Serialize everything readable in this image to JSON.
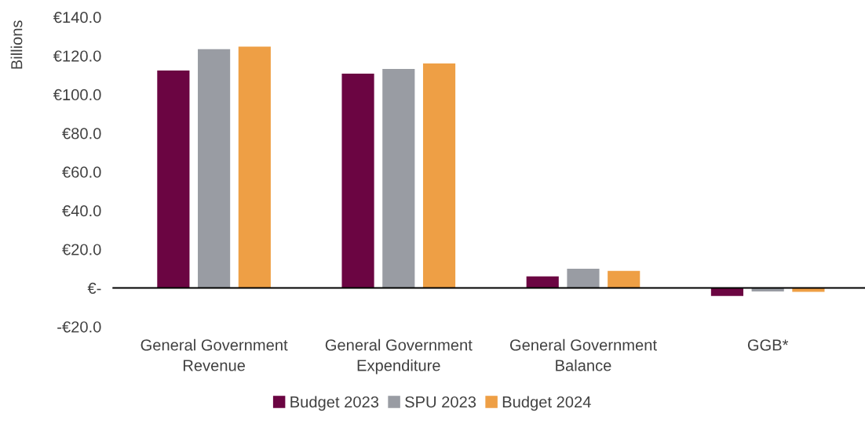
{
  "chart_data": {
    "type": "bar",
    "ylabel": "Billions",
    "categories": [
      "General Government\nRevenue",
      "General Government\nExpenditure",
      "General Government\nBalance",
      "GGB*"
    ],
    "series": [
      {
        "name": "Budget 2023",
        "color": "#6b0542",
        "values": [
          112.4,
          110.8,
          6.0,
          -4.1
        ]
      },
      {
        "name": "SPU 2023",
        "color": "#999ca3",
        "values": [
          123.4,
          113.2,
          9.9,
          -1.8
        ]
      },
      {
        "name": "Budget 2024",
        "color": "#ee9f45",
        "values": [
          124.7,
          116.0,
          8.8,
          -2.0
        ]
      }
    ],
    "ylim": [
      -20,
      140
    ],
    "yticks": [
      {
        "value": -20,
        "label": "-€20.0"
      },
      {
        "value": 0,
        "label": "€-"
      },
      {
        "value": 20,
        "label": "€20.0"
      },
      {
        "value": 40,
        "label": "€40.0"
      },
      {
        "value": 60,
        "label": "€60.0"
      },
      {
        "value": 80,
        "label": "€80.0"
      },
      {
        "value": 100,
        "label": "€100.0"
      },
      {
        "value": 120,
        "label": "€120.0"
      },
      {
        "value": 140,
        "label": "€140.0"
      }
    ],
    "ref_lines": [
      {
        "axis": "y",
        "value": 0,
        "color": "#000000"
      }
    ],
    "legend": "bottom"
  }
}
